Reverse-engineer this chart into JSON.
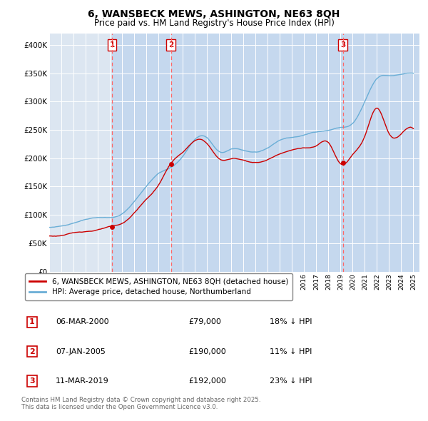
{
  "title": "6, WANSBECK MEWS, ASHINGTON, NE63 8QH",
  "subtitle": "Price paid vs. HM Land Registry's House Price Index (HPI)",
  "title_fontsize": 10,
  "subtitle_fontsize": 8.5,
  "background_color": "#ffffff",
  "plot_bg_color": "#dce6f1",
  "shade_color": "#c5d8ee",
  "grid_color": "#ffffff",
  "hpi_color": "#6aaed6",
  "price_color": "#cc0000",
  "vline_color": "#ff6666",
  "ylim": [
    0,
    420000
  ],
  "yticks": [
    0,
    50000,
    100000,
    150000,
    200000,
    250000,
    300000,
    350000,
    400000
  ],
  "ytick_labels": [
    "£0",
    "£50K",
    "£100K",
    "£150K",
    "£200K",
    "£250K",
    "£300K",
    "£350K",
    "£400K"
  ],
  "xlim_start": 1995.0,
  "xlim_end": 2025.5,
  "sale_dates": [
    2000.17,
    2005.02,
    2019.19
  ],
  "sale_prices": [
    79000,
    190000,
    192000
  ],
  "sale_labels": [
    "1",
    "2",
    "3"
  ],
  "legend_entries": [
    "6, WANSBECK MEWS, ASHINGTON, NE63 8QH (detached house)",
    "HPI: Average price, detached house, Northumberland"
  ],
  "table_rows": [
    [
      "1",
      "06-MAR-2000",
      "£79,000",
      "18% ↓ HPI"
    ],
    [
      "2",
      "07-JAN-2005",
      "£190,000",
      "11% ↓ HPI"
    ],
    [
      "3",
      "11-MAR-2019",
      "£192,000",
      "23% ↓ HPI"
    ]
  ],
  "footer": "Contains HM Land Registry data © Crown copyright and database right 2025.\nThis data is licensed under the Open Government Licence v3.0."
}
